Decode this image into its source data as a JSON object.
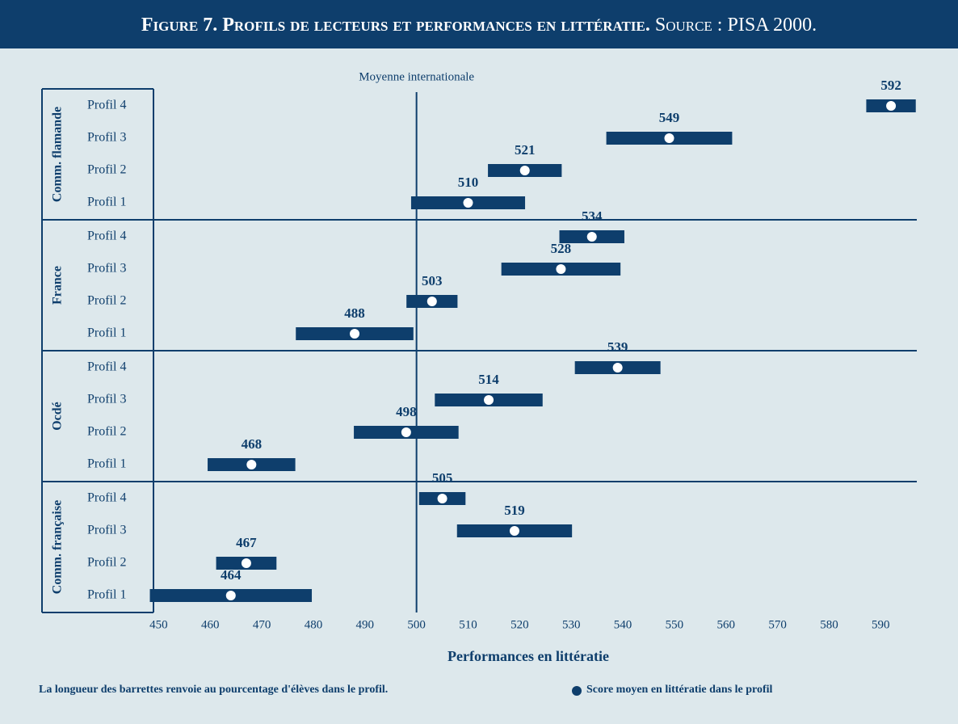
{
  "chart_data": {
    "type": "range_dot",
    "title": "Figure 7. Profils de lecteurs et performances en littératie.",
    "subtitle": "Source : PISA 2000.",
    "xlabel": "Performances en littératie",
    "reference_line": {
      "value": 500,
      "label": "Moyenne internationale"
    },
    "note": "La longueur des barrettes renvoie au pourcentage d'élèves dans le profil.",
    "dot_legend": "Score moyen en littératie dans le profil",
    "color": "#0e3e6c",
    "dot_color": "#ffffff",
    "xlim": [
      449,
      597
    ],
    "xticks": [
      450,
      460,
      470,
      480,
      490,
      500,
      510,
      520,
      530,
      540,
      550,
      560,
      570,
      580,
      590
    ],
    "series": [
      {
        "name": "Comm. flamande",
        "categories": [
          "Profil 4",
          "Profil 3",
          "Profil 2",
          "Profil 1"
        ],
        "values": [
          592,
          549,
          521,
          510
        ],
        "bar_lengths": [
          9.6,
          24.4,
          14.3,
          22.1
        ]
      },
      {
        "name": "France",
        "categories": [
          "Profil 4",
          "Profil 3",
          "Profil 2",
          "Profil 1"
        ],
        "values": [
          534,
          528,
          503,
          488
        ],
        "bar_lengths": [
          12.6,
          23.1,
          9.9,
          22.8
        ]
      },
      {
        "name": "Ocdé",
        "categories": [
          "Profil 4",
          "Profil 3",
          "Profil 2",
          "Profil 1"
        ],
        "values": [
          539,
          514,
          498,
          468
        ],
        "bar_lengths": [
          16.6,
          20.9,
          20.3,
          17.0
        ]
      },
      {
        "name": "Comm. française",
        "categories": [
          "Profil 4",
          "Profil 3",
          "Profil 2",
          "Profil 1"
        ],
        "values": [
          505,
          519,
          467,
          464
        ],
        "bar_lengths": [
          9.0,
          22.3,
          11.7,
          31.4
        ]
      }
    ]
  }
}
